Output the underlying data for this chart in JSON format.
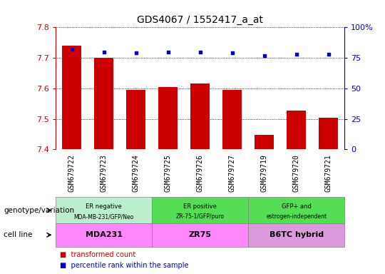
{
  "title": "GDS4067 / 1552417_a_at",
  "samples": [
    "GSM679722",
    "GSM679723",
    "GSM679724",
    "GSM679725",
    "GSM679726",
    "GSM679727",
    "GSM679719",
    "GSM679720",
    "GSM679721"
  ],
  "transformed_count": [
    7.74,
    7.7,
    7.595,
    7.605,
    7.615,
    7.596,
    7.447,
    7.528,
    7.503
  ],
  "percentile_rank": [
    82,
    80,
    79,
    80,
    80,
    79,
    77,
    78,
    78
  ],
  "ylim": [
    7.4,
    7.8
  ],
  "yticks": [
    7.4,
    7.5,
    7.6,
    7.7,
    7.8
  ],
  "y2lim": [
    0,
    100
  ],
  "y2ticks": [
    0,
    25,
    50,
    75,
    100
  ],
  "y2ticklabels": [
    "0",
    "25",
    "50",
    "75",
    "100%"
  ],
  "bar_color": "#cc0000",
  "dot_color": "#0000cc",
  "bar_width": 0.6,
  "genotype_groups": [
    {
      "label": "ER negative\nMDA-MB-231/GFP/Neo",
      "start": 0,
      "end": 3,
      "color": "#bbeecc"
    },
    {
      "label": "ER positive\nZR-75-1/GFP/puro",
      "start": 3,
      "end": 6,
      "color": "#55dd55"
    },
    {
      "label": "GFP+ and\nestrogen-independent",
      "start": 6,
      "end": 9,
      "color": "#55dd55"
    }
  ],
  "cell_line_groups": [
    {
      "label": "MDA231",
      "start": 0,
      "end": 3,
      "color": "#ff88ff"
    },
    {
      "label": "ZR75",
      "start": 3,
      "end": 6,
      "color": "#ff88ff"
    },
    {
      "label": "B6TC hybrid",
      "start": 6,
      "end": 9,
      "color": "#dd99dd"
    }
  ],
  "legend_transformed": "transformed count",
  "legend_percentile": "percentile rank within the sample",
  "xlabel_genotype": "genotype/variation",
  "xlabel_cellline": "cell line",
  "tick_color_left": "#cc0000",
  "tick_color_right": "#0000cc",
  "xtick_bg": "#cccccc",
  "plot_bg": "#ffffff",
  "ax_facecolor": "#ffffff"
}
